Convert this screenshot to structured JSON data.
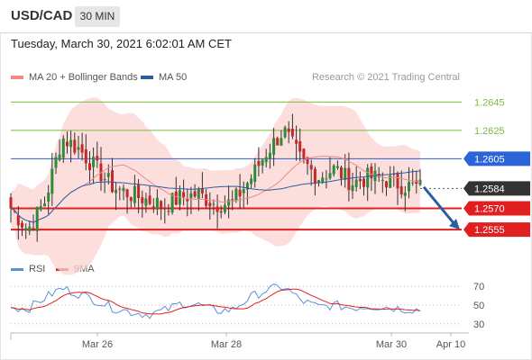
{
  "header": {
    "pair": "USD/CAD",
    "timeframe": "30 MIN"
  },
  "timestamp": "Tuesday, March 30, 2021 6:02:01 AM CET",
  "legend": [
    {
      "label": "MA 20 + Bollinger Bands",
      "color": "#f08a85"
    },
    {
      "label": "MA 50",
      "color": "#2b5ea0"
    }
  ],
  "credit": "Research © 2021 Trading Central",
  "rsi_legend": [
    {
      "label": "RSI",
      "color": "#5b8fd6"
    },
    {
      "label": "9MA",
      "color": "#e02020"
    }
  ],
  "chart_data": {
    "type": "candlestick",
    "price_ylim": [
      1.2543,
      1.2656
    ],
    "rsi_ylim": [
      25,
      75
    ],
    "x_ticks": [
      "Mar 26",
      "Mar 28",
      "Mar 30",
      "Apr 10"
    ],
    "levels": [
      {
        "label": "1.2645",
        "value": 1.2645,
        "kind": "target",
        "color": "#7cbb3d"
      },
      {
        "label": "1.2625",
        "value": 1.2625,
        "kind": "target",
        "color": "#7cbb3d"
      },
      {
        "label": "1.2605",
        "value": 1.2605,
        "kind": "pivot",
        "color": "#2b63d8"
      },
      {
        "label": "1.2584",
        "value": 1.2584,
        "kind": "last",
        "color": "#333333"
      },
      {
        "label": "1.2570",
        "value": 1.257,
        "kind": "support",
        "color": "#e02020"
      },
      {
        "label": "1.2555",
        "value": 1.2555,
        "kind": "support",
        "color": "#e02020"
      }
    ],
    "rsi_ticks": [
      {
        "label": "70",
        "value": 70
      },
      {
        "label": "50",
        "value": 50
      },
      {
        "label": "30",
        "value": 30
      }
    ],
    "close_path": [
      1.257,
      1.2555,
      1.2575,
      1.262,
      1.2612,
      1.2598,
      1.2585,
      1.258,
      1.2576,
      1.2572,
      1.2578,
      1.258,
      1.2573,
      1.2574,
      1.259,
      1.261,
      1.2625,
      1.2604,
      1.2592,
      1.2598,
      1.2588,
      1.2592,
      1.259,
      1.2586,
      1.2585
    ],
    "rsi_path": [
      48,
      46,
      58,
      68,
      62,
      55,
      47,
      43,
      40,
      44,
      52,
      50,
      44,
      45,
      58,
      66,
      70,
      55,
      48,
      50,
      47,
      49,
      48,
      46,
      45
    ],
    "forecast": {
      "from": 1.2585,
      "to": 1.2555,
      "direction": "down"
    }
  }
}
